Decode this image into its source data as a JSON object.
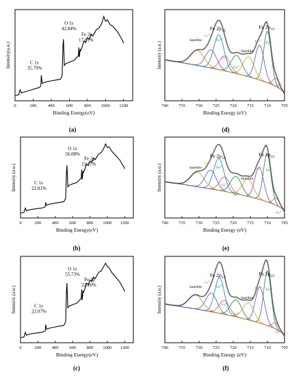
{
  "figure": {
    "panels": [
      {
        "id": "a",
        "label": "(a)",
        "xlabel": "Binding Energy(eV)",
        "ylabel": "Intensity(a.u.)"
      },
      {
        "id": "b",
        "label": "(b)",
        "xlabel": "Binding Energy(eV)",
        "ylabel": "Intensity (a.u.)"
      },
      {
        "id": "c",
        "label": "(c)",
        "xlabel": "Binding Energy(eV)",
        "ylabel": "Intensity (a.u.)"
      },
      {
        "id": "d",
        "label": "(d)",
        "xlabel": "Binding Energy (eV)",
        "ylabel": "Intensity (a.u.)"
      },
      {
        "id": "e",
        "label": "(e)",
        "xlabel": "Binding Energy (eV)",
        "ylabel": "Intensity (a.u.)"
      },
      {
        "id": "f",
        "label": "(f)",
        "xlabel": "Binding Energy (eV)",
        "ylabel": "Intensity (a.u.)"
      }
    ]
  },
  "chart_data": [
    {
      "panel": "a",
      "type": "line",
      "xlabel": "Binding Energy(eV)",
      "ylabel": "Intensity(a.u.)",
      "xlim": [
        0,
        1300
      ],
      "xticks": [
        0,
        200,
        400,
        600,
        800,
        1000,
        1200
      ],
      "series": [
        {
          "x": [
            5,
            40,
            55,
            70,
            80,
            120,
            180,
            240,
            270,
            285,
            290,
            300,
            350,
            400,
            450,
            500,
            520,
            530,
            535,
            545,
            560,
            600,
            650,
            700,
            705,
            710,
            715,
            720,
            725,
            740,
            760,
            780,
            800,
            820,
            840,
            860,
            880,
            900,
            930,
            960,
            980,
            1000,
            1020,
            1050,
            1080,
            1110,
            1140,
            1160,
            1190,
            1200
          ],
          "y": [
            3,
            4,
            10,
            6,
            7,
            8,
            10,
            12,
            13,
            15,
            28,
            18,
            20,
            21,
            22,
            23,
            27,
            65,
            72,
            40,
            42,
            44,
            46,
            52,
            62,
            50,
            55,
            60,
            58,
            62,
            70,
            68,
            74,
            72,
            78,
            76,
            80,
            84,
            86,
            92,
            100,
            94,
            96,
            90,
            88,
            84,
            80,
            76,
            70,
            67
          ]
        }
      ],
      "annotations": [
        {
          "text": "C 1s",
          "sub": "35.79%"
        },
        {
          "text": "O 1s",
          "sub": "42.84%"
        },
        {
          "text": "Fe 2p",
          "sub": "17.01%"
        }
      ]
    },
    {
      "panel": "b",
      "type": "line",
      "xlabel": "Binding Energy(eV)",
      "ylabel": "Intensity (a.u.)",
      "xlim": [
        0,
        1300
      ],
      "xticks": [
        0,
        200,
        400,
        600,
        800,
        1000,
        1200
      ],
      "series": [
        {
          "x": [
            5,
            40,
            55,
            70,
            80,
            120,
            180,
            240,
            270,
            285,
            290,
            300,
            350,
            400,
            450,
            500,
            520,
            530,
            535,
            545,
            560,
            600,
            650,
            700,
            705,
            710,
            715,
            720,
            725,
            740,
            760,
            780,
            800,
            820,
            840,
            860,
            880,
            900,
            930,
            960,
            980,
            1000,
            1020,
            1050,
            1080,
            1110,
            1140,
            1160,
            1190,
            1200
          ],
          "y": [
            3,
            4,
            10,
            6,
            7,
            8,
            9,
            10,
            11,
            12,
            18,
            14,
            16,
            17,
            18,
            19,
            24,
            62,
            70,
            40,
            42,
            44,
            46,
            52,
            64,
            50,
            56,
            62,
            60,
            64,
            72,
            70,
            76,
            74,
            80,
            78,
            82,
            86,
            88,
            94,
            100,
            95,
            96,
            90,
            86,
            82,
            78,
            74,
            68,
            65
          ]
        }
      ],
      "annotations": [
        {
          "text": "C 1s",
          "sub": "22.81%"
        },
        {
          "text": "O 1s",
          "sub": "56.08%"
        },
        {
          "text": "Fe 2p",
          "sub": "21.11%"
        }
      ]
    },
    {
      "panel": "c",
      "type": "line",
      "xlabel": "Binding Energy(eV)",
      "ylabel": "Intensity (a.u.)",
      "xlim": [
        0,
        1300
      ],
      "xticks": [
        0,
        200,
        400,
        600,
        800,
        1000,
        1200
      ],
      "series": [
        {
          "x": [
            5,
            40,
            55,
            70,
            80,
            120,
            180,
            240,
            270,
            285,
            290,
            300,
            350,
            400,
            450,
            500,
            520,
            530,
            535,
            545,
            560,
            600,
            650,
            700,
            705,
            710,
            715,
            720,
            725,
            740,
            760,
            780,
            800,
            820,
            840,
            860,
            880,
            900,
            930,
            960,
            980,
            1000,
            1020,
            1050,
            1080,
            1110,
            1140,
            1160,
            1190,
            1200
          ],
          "y": [
            3,
            4,
            10,
            6,
            7,
            8,
            9,
            10,
            11,
            12,
            20,
            14,
            16,
            17,
            18,
            19,
            24,
            66,
            74,
            42,
            44,
            46,
            48,
            54,
            66,
            52,
            58,
            64,
            62,
            66,
            74,
            72,
            78,
            76,
            82,
            80,
            84,
            88,
            90,
            96,
            100,
            96,
            94,
            88,
            84,
            80,
            76,
            72,
            66,
            63
          ]
        }
      ],
      "annotations": [
        {
          "text": "C 1s",
          "sub": "22.07%"
        },
        {
          "text": "O 1s",
          "sub": "55.73%"
        },
        {
          "text": "Fe 2p",
          "sub": "22.20%"
        }
      ]
    },
    {
      "panel": "d",
      "type": "line",
      "xlabel": "Binding Energy (eV)",
      "ylabel": "Intensity (a.u.)",
      "xlim": [
        740,
        705
      ],
      "xticks": [
        740,
        735,
        730,
        725,
        720,
        715,
        710,
        705
      ],
      "peak_labels": [
        "Satellite",
        "Fe 2p1/2",
        "Fe 2p3/2",
        "Fe3+",
        "Fe2+",
        "Fe3+",
        "Satellite",
        "Fe2+",
        "Fe3+",
        "Fe2+",
        "Fe3+"
      ],
      "components": [
        {
          "name": "Fe2+",
          "center": 710.0,
          "height": 0.62,
          "width": 1.1,
          "color": "#2e8b57"
        },
        {
          "name": "Fe3+",
          "center": 712.3,
          "height": 0.42,
          "width": 1.3,
          "color": "#6a5acd"
        },
        {
          "name": "Fe3+",
          "center": 707.5,
          "height": 0.1,
          "width": 0.9,
          "color": "#d35d8f"
        },
        {
          "name": "Satellite",
          "center": 715.5,
          "height": 0.24,
          "width": 1.6,
          "color": "#e0a030"
        },
        {
          "name": "Fe2+",
          "center": 719.0,
          "height": 0.22,
          "width": 1.6,
          "color": "#2e8b57"
        },
        {
          "name": "Fe3+",
          "center": 722.5,
          "height": 0.18,
          "width": 1.5,
          "color": "#d35d8f"
        },
        {
          "name": "Fe2+",
          "center": 724.2,
          "height": 0.42,
          "width": 1.5,
          "color": "#1e90b0"
        },
        {
          "name": "Fe3+",
          "center": 726.5,
          "height": 0.22,
          "width": 1.6,
          "color": "#6a5acd"
        },
        {
          "name": "Satellite",
          "center": 730.5,
          "height": 0.18,
          "width": 2.0,
          "color": "#d2952a"
        }
      ]
    },
    {
      "panel": "e",
      "type": "line",
      "xlabel": "Binding Energy (eV)",
      "ylabel": "Intensity (a.u.)",
      "xlim": [
        740,
        705
      ],
      "xticks": [
        740,
        735,
        730,
        725,
        720,
        715,
        710,
        705
      ],
      "peak_labels": [
        "Fe 2p1/2",
        "Fe 2p3/2",
        "Satellite",
        "Fe2+",
        "Fe2+",
        "Fe3+",
        "Fe3+",
        "Satellite",
        "Fe3+",
        "Fe2+",
        "Fe3+"
      ],
      "components": [
        {
          "name": "Fe2+",
          "center": 710.1,
          "height": 0.66,
          "width": 1.1,
          "color": "#2e8b57"
        },
        {
          "name": "Fe3+",
          "center": 712.4,
          "height": 0.44,
          "width": 1.3,
          "color": "#6a5acd"
        },
        {
          "name": "Fe3+",
          "center": 707.4,
          "height": 0.1,
          "width": 0.9,
          "color": "#d35d8f"
        },
        {
          "name": "Satellite",
          "center": 715.7,
          "height": 0.24,
          "width": 1.6,
          "color": "#e0a030"
        },
        {
          "name": "Fe2+",
          "center": 719.2,
          "height": 0.24,
          "width": 1.6,
          "color": "#2e8b57"
        },
        {
          "name": "Fe3+",
          "center": 722.5,
          "height": 0.2,
          "width": 1.5,
          "color": "#d35d8f"
        },
        {
          "name": "Fe2+",
          "center": 724.2,
          "height": 0.44,
          "width": 1.5,
          "color": "#1e90b0"
        },
        {
          "name": "Fe3+",
          "center": 726.6,
          "height": 0.26,
          "width": 1.6,
          "color": "#6a5acd"
        },
        {
          "name": "Satellite",
          "center": 730.5,
          "height": 0.2,
          "width": 2.0,
          "color": "#d2952a"
        }
      ]
    },
    {
      "panel": "f",
      "type": "line",
      "xlabel": "Binding Energy (eV)",
      "ylabel": "Intensity (a.u.)",
      "xlim": [
        740,
        705
      ],
      "xticks": [
        740,
        735,
        730,
        725,
        720,
        715,
        710,
        705
      ],
      "peak_labels": [
        "Fe 2p1/2",
        "Fe 2p3/2",
        "Satellite",
        "Fe3+",
        "Fe2+",
        "Satellite",
        "Fe3+",
        "Fe3+",
        "Fe2+",
        "Fe3+"
      ],
      "components": [
        {
          "name": "Fe2+",
          "center": 710.0,
          "height": 0.7,
          "width": 1.1,
          "color": "#2e8b57"
        },
        {
          "name": "Fe3+",
          "center": 712.2,
          "height": 0.46,
          "width": 1.3,
          "color": "#6a5acd"
        },
        {
          "name": "Fe3+",
          "center": 707.6,
          "height": 0.08,
          "width": 0.9,
          "color": "#d35d8f"
        },
        {
          "name": "Satellite",
          "center": 715.6,
          "height": 0.22,
          "width": 1.6,
          "color": "#e0a030"
        },
        {
          "name": "Fe2+",
          "center": 719.2,
          "height": 0.22,
          "width": 1.6,
          "color": "#2e8b57"
        },
        {
          "name": "Fe3+",
          "center": 722.6,
          "height": 0.18,
          "width": 1.5,
          "color": "#d35d8f"
        },
        {
          "name": "Fe2+",
          "center": 724.0,
          "height": 0.46,
          "width": 1.4,
          "color": "#1e90b0"
        },
        {
          "name": "Fe3+",
          "center": 726.4,
          "height": 0.24,
          "width": 1.6,
          "color": "#6a5acd"
        },
        {
          "name": "Satellite",
          "center": 731.0,
          "height": 0.18,
          "width": 2.0,
          "color": "#d2952a"
        }
      ]
    }
  ]
}
